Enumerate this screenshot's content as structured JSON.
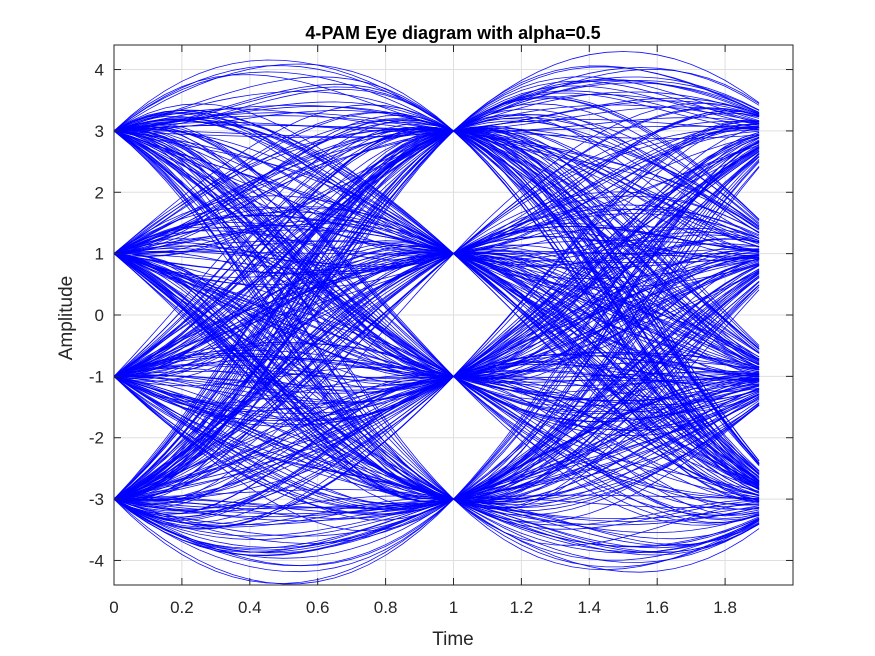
{
  "chart_data": {
    "type": "line",
    "title": "4-PAM Eye diagram with alpha=0.5",
    "xlabel": "Time",
    "ylabel": "Amplitude",
    "xlim": [
      0,
      2
    ],
    "ylim": [
      -4.4,
      4.4
    ],
    "x_range_data": [
      0,
      1.9
    ],
    "x_ticks": [
      0,
      0.2,
      0.4,
      0.6,
      0.8,
      1,
      1.2,
      1.4,
      1.6,
      1.8
    ],
    "x_tick_labels": [
      "0",
      "0.2",
      "0.4",
      "0.6",
      "0.8",
      "1",
      "1.2",
      "1.4",
      "1.6",
      "1.8"
    ],
    "y_ticks": [
      4,
      3,
      2,
      1,
      0,
      -1,
      -2,
      -3,
      -4
    ],
    "y_tick_labels": [
      "4",
      "3",
      "2",
      "1",
      "0",
      "-1",
      "-2",
      "-3",
      "-4"
    ],
    "symbol_levels": [
      -3,
      -1,
      1,
      3
    ],
    "sample_instants": [
      0,
      1
    ],
    "rolloff_alpha": 0.5,
    "grid": true,
    "legend": "none",
    "series_color": "#0000ff",
    "trace_count": 420
  }
}
